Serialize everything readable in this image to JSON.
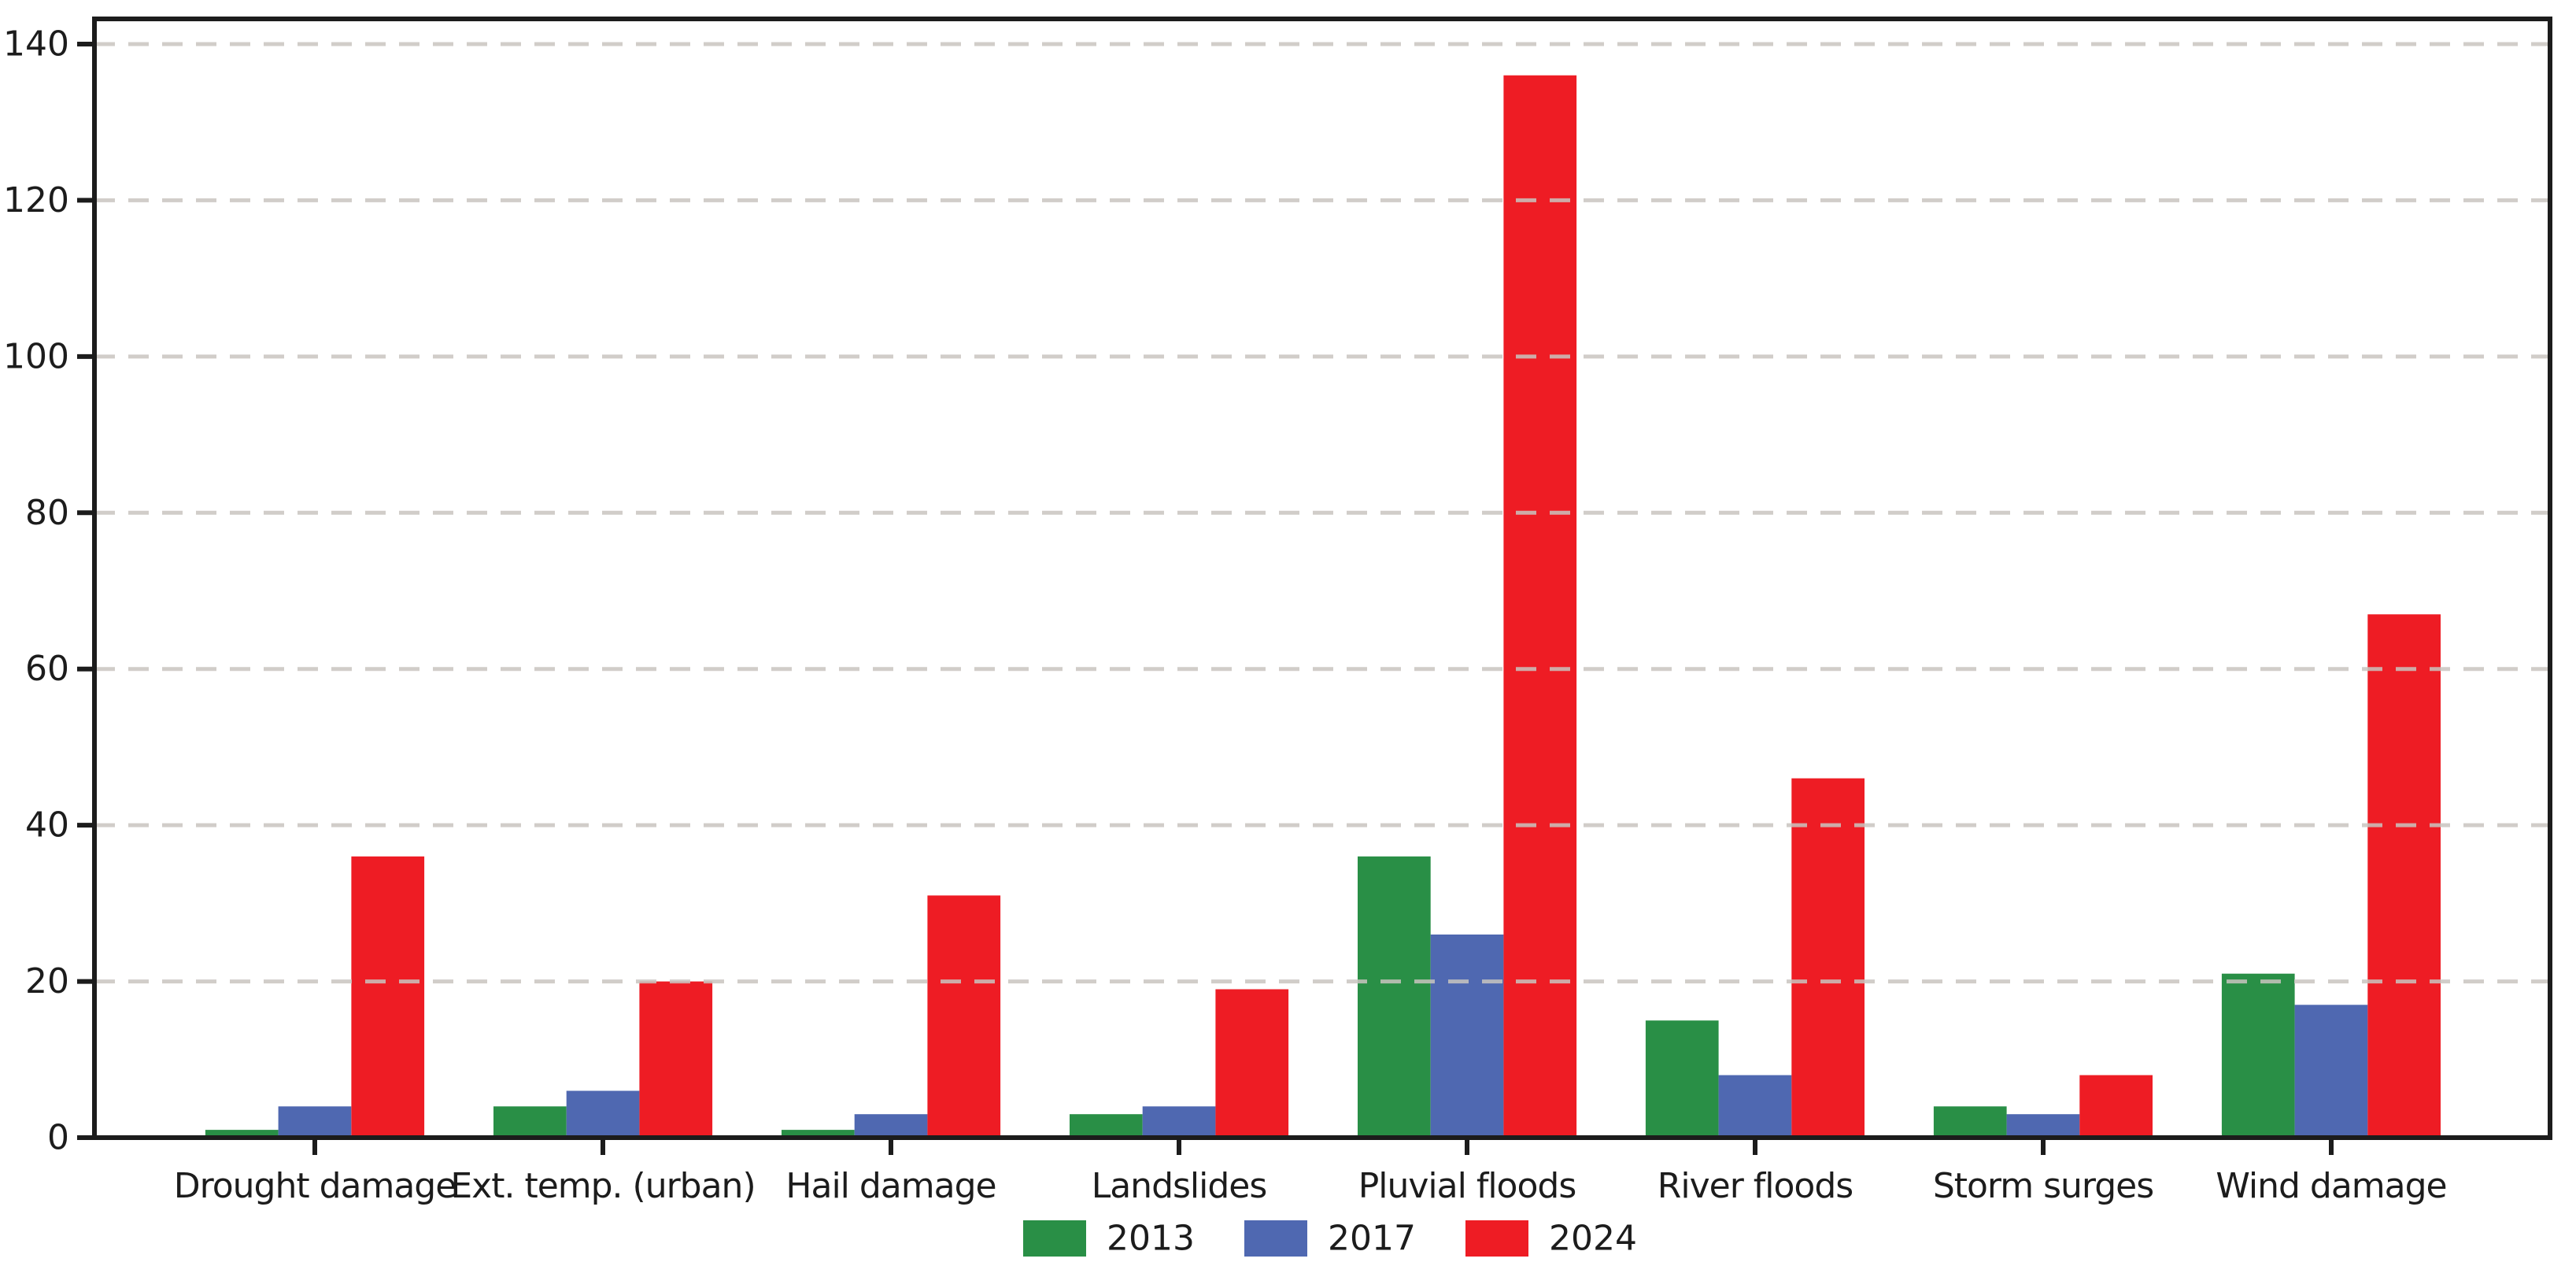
{
  "chart_data": {
    "type": "bar",
    "categories": [
      "Drought damage",
      "Ext. temp. (urban)",
      "Hail damage",
      "Landslides",
      "Pluvial floods",
      "River floods",
      "Storm surges",
      "Wind damage"
    ],
    "series": [
      {
        "name": "2013",
        "color": "#298f46",
        "values": [
          1,
          4,
          1,
          3,
          36,
          15,
          4,
          21
        ]
      },
      {
        "name": "2017",
        "color": "#4f68b1",
        "values": [
          4,
          6,
          3,
          4,
          26,
          8,
          3,
          17
        ]
      },
      {
        "name": "2024",
        "color": "#ee1c24",
        "values": [
          36,
          20,
          31,
          19,
          136,
          46,
          8,
          67
        ]
      }
    ],
    "title": "",
    "xlabel": "",
    "ylabel": "",
    "ylim": [
      0,
      140
    ],
    "yticks": [
      0,
      20,
      40,
      60,
      80,
      100,
      120,
      140
    ],
    "grid": "horizontal-dashed-over-bars",
    "legend_position": "bottom-center",
    "colors": {
      "axis": "#1c1c1c",
      "gridline": "#c9c5c0",
      "background": "#ffffff"
    }
  }
}
